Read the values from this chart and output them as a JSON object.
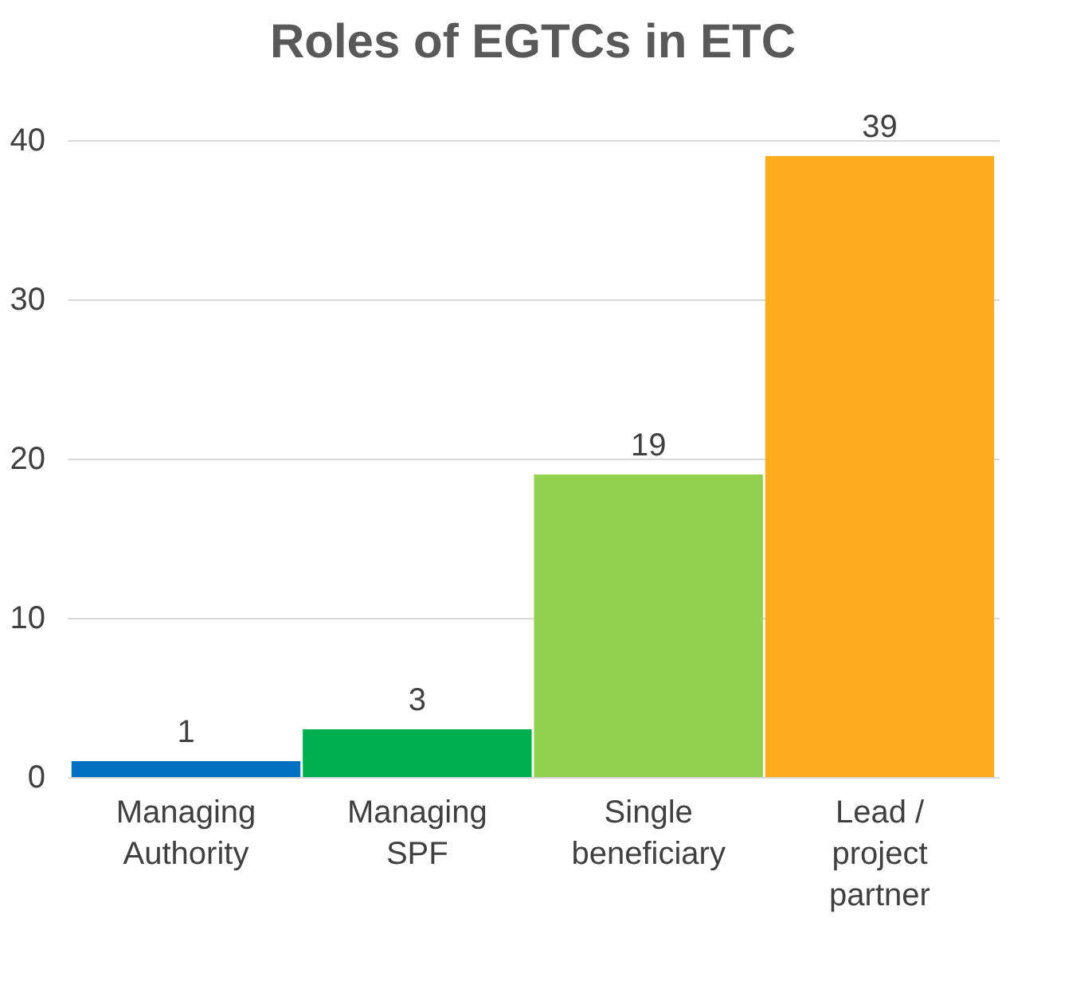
{
  "chart_data": {
    "type": "bar",
    "title": "Roles of EGTCs in ETC",
    "categories": [
      "Managing Authority",
      "Managing SPF",
      "Single beneficiary",
      "Lead / project partner"
    ],
    "values": [
      1,
      3,
      19,
      39
    ],
    "colors": [
      "#0070c0",
      "#00b050",
      "#92d050",
      "#ffac1f"
    ],
    "ylim": [
      0,
      40
    ],
    "yticks": [
      0,
      10,
      20,
      30,
      40
    ],
    "grid": "y",
    "data_labels": true
  }
}
